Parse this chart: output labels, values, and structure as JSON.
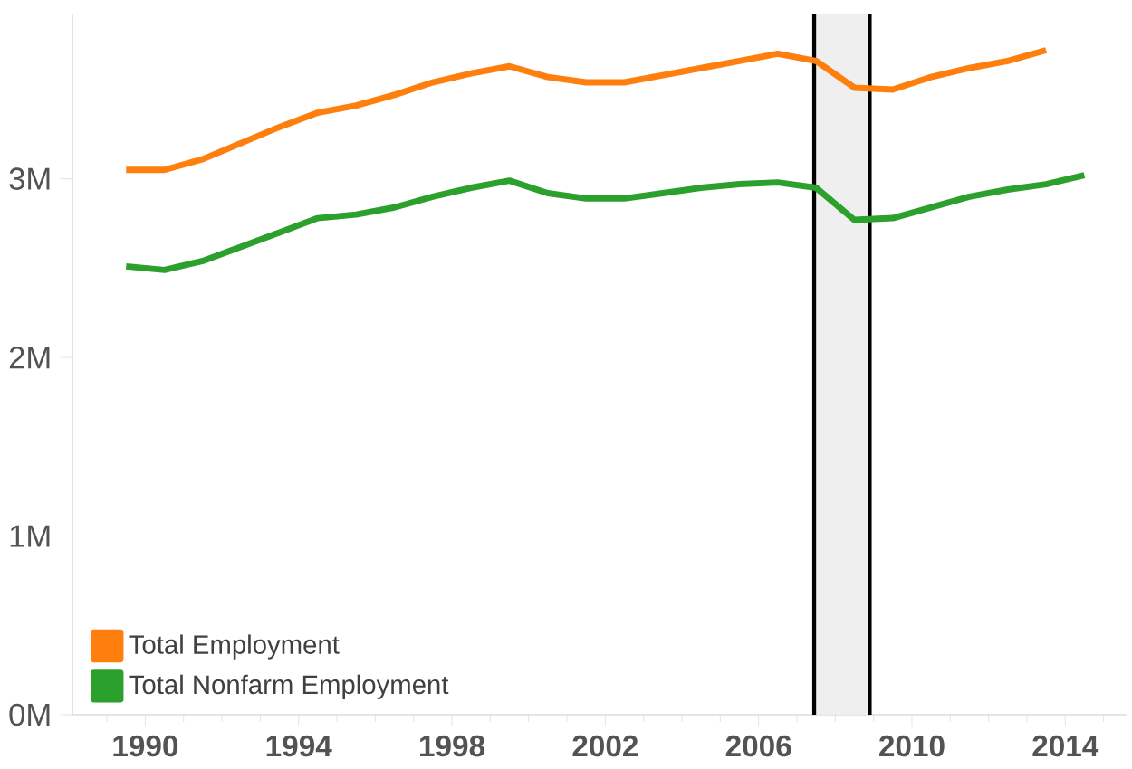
{
  "chart_data": {
    "type": "line",
    "x": [
      1989.5,
      1990.5,
      1991.5,
      1992.5,
      1993.5,
      1994.5,
      1995.5,
      1996.5,
      1997.5,
      1998.5,
      1999.5,
      2000.5,
      2001.5,
      2002.5,
      2003.5,
      2004.5,
      2005.5,
      2006.5,
      2007.5,
      2008.5,
      2009.5,
      2010.5,
      2011.5,
      2012.5,
      2013.5,
      2014.5
    ],
    "series": [
      {
        "name": "Total Employment",
        "color": "#ff7f0e",
        "values": [
          3050000,
          3050000,
          3110000,
          3200000,
          3290000,
          3370000,
          3410000,
          3470000,
          3540000,
          3590000,
          3630000,
          3570000,
          3540000,
          3540000,
          3580000,
          3620000,
          3660000,
          3700000,
          3660000,
          3510000,
          3500000,
          3570000,
          3620000,
          3660000,
          3720000,
          null
        ]
      },
      {
        "name": "Total Nonfarm Employment",
        "color": "#2ca02c",
        "values": [
          2510000,
          2490000,
          2540000,
          2620000,
          2700000,
          2780000,
          2800000,
          2840000,
          2900000,
          2950000,
          2990000,
          2920000,
          2890000,
          2890000,
          2920000,
          2950000,
          2970000,
          2980000,
          2950000,
          2770000,
          2780000,
          2840000,
          2900000,
          2940000,
          2970000,
          3020000
        ]
      }
    ],
    "xlim": [
      1988.1,
      2015.6
    ],
    "ylim": [
      0,
      3920000
    ],
    "xticks": [
      1990,
      1994,
      1998,
      2002,
      2006,
      2010,
      2014,
      {
        "value": 1989,
        "label": null
      },
      {
        "value": 1991,
        "label": null
      },
      {
        "value": 1992,
        "label": null
      },
      {
        "value": 1993,
        "label": null
      },
      {
        "value": 1995,
        "label": null
      },
      {
        "value": 1996,
        "label": null
      },
      {
        "value": 1997,
        "label": null
      },
      {
        "value": 1999,
        "label": null
      },
      {
        "value": 2000,
        "label": null
      },
      {
        "value": 2001,
        "label": null
      },
      {
        "value": 2003,
        "label": null
      },
      {
        "value": 2004,
        "label": null
      },
      {
        "value": 2005,
        "label": null
      },
      {
        "value": 2007,
        "label": null
      },
      {
        "value": 2008,
        "label": null
      },
      {
        "value": 2009,
        "label": null
      },
      {
        "value": 2011,
        "label": null
      },
      {
        "value": 2012,
        "label": null
      },
      {
        "value": 2013,
        "label": null
      },
      {
        "value": 2015,
        "label": null
      }
    ],
    "yticks": [
      {
        "value": 0,
        "label": "0M"
      },
      {
        "value": 1000000,
        "label": "1M"
      },
      {
        "value": 2000000,
        "label": "2M"
      },
      {
        "value": 3000000,
        "label": "3M"
      }
    ],
    "bands": [
      {
        "axis": "x",
        "from": 2007.45,
        "to": 2008.9,
        "color": "#efefef"
      }
    ],
    "ref_lines": [
      {
        "axis": "x",
        "value": 2007.45,
        "color": "#000000"
      },
      {
        "axis": "x",
        "value": 2008.9,
        "color": "#000000"
      }
    ],
    "grid": false,
    "legend": "bottom left",
    "marker": "none",
    "line_style": "solid"
  }
}
